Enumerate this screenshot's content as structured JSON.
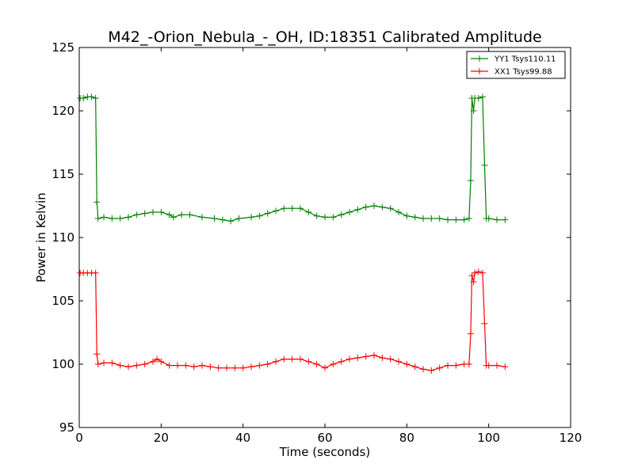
{
  "chart_data": {
    "type": "line",
    "title": "M42_-Orion_Nebula_-_OH, ID:18351 Calibrated Amplitude",
    "xlabel": "Time (seconds)",
    "ylabel": "Power in Kelvin",
    "xlim": [
      0,
      120
    ],
    "ylim": [
      95,
      125
    ],
    "xticks": [
      0,
      20,
      40,
      60,
      80,
      100,
      120
    ],
    "yticks": [
      95,
      100,
      105,
      110,
      115,
      120,
      125
    ],
    "grid": false,
    "legend_position": "top-right",
    "marker": "plus",
    "series": [
      {
        "name": "YY1 Tsys110.11",
        "color": "#008000",
        "points": [
          [
            0.2,
            121.0
          ],
          [
            1.0,
            121.0
          ],
          [
            2.0,
            121.1
          ],
          [
            3.0,
            121.1
          ],
          [
            4.0,
            121.0
          ],
          [
            4.3,
            112.8
          ],
          [
            4.6,
            111.5
          ],
          [
            6,
            111.6
          ],
          [
            8,
            111.5
          ],
          [
            10,
            111.5
          ],
          [
            12,
            111.6
          ],
          [
            14,
            111.8
          ],
          [
            16,
            111.9
          ],
          [
            18,
            112.0
          ],
          [
            20,
            112.0
          ],
          [
            22,
            111.8
          ],
          [
            23,
            111.6
          ],
          [
            25,
            111.8
          ],
          [
            27,
            111.8
          ],
          [
            30,
            111.6
          ],
          [
            33,
            111.5
          ],
          [
            35,
            111.4
          ],
          [
            37,
            111.3
          ],
          [
            39,
            111.5
          ],
          [
            42,
            111.6
          ],
          [
            44,
            111.7
          ],
          [
            46,
            111.9
          ],
          [
            48,
            112.1
          ],
          [
            50,
            112.3
          ],
          [
            52,
            112.3
          ],
          [
            54,
            112.3
          ],
          [
            56,
            112.0
          ],
          [
            58,
            111.7
          ],
          [
            60,
            111.6
          ],
          [
            62,
            111.6
          ],
          [
            64,
            111.8
          ],
          [
            66,
            112.0
          ],
          [
            68,
            112.2
          ],
          [
            70,
            112.4
          ],
          [
            72,
            112.5
          ],
          [
            74,
            112.4
          ],
          [
            76,
            112.3
          ],
          [
            78,
            112.0
          ],
          [
            80,
            111.7
          ],
          [
            82,
            111.6
          ],
          [
            84,
            111.5
          ],
          [
            86,
            111.5
          ],
          [
            88,
            111.5
          ],
          [
            90,
            111.4
          ],
          [
            92,
            111.4
          ],
          [
            94,
            111.4
          ],
          [
            95.2,
            111.5
          ],
          [
            95.6,
            114.5
          ],
          [
            95.9,
            121.0
          ],
          [
            96.3,
            120.0
          ],
          [
            96.6,
            121.0
          ],
          [
            97.5,
            121.0
          ],
          [
            98.5,
            121.1
          ],
          [
            99.0,
            115.7
          ],
          [
            99.4,
            111.5
          ],
          [
            100,
            111.5
          ],
          [
            102,
            111.4
          ],
          [
            104,
            111.4
          ]
        ]
      },
      {
        "name": "XX1 Tsys99.88",
        "color": "#ff0000",
        "points": [
          [
            0.2,
            107.2
          ],
          [
            1.0,
            107.2
          ],
          [
            2.0,
            107.2
          ],
          [
            3.0,
            107.2
          ],
          [
            4.0,
            107.2
          ],
          [
            4.3,
            100.8
          ],
          [
            4.6,
            100.0
          ],
          [
            6,
            100.1
          ],
          [
            8,
            100.1
          ],
          [
            10,
            99.9
          ],
          [
            12,
            99.8
          ],
          [
            14,
            99.9
          ],
          [
            16,
            100.0
          ],
          [
            18,
            100.2
          ],
          [
            19,
            100.4
          ],
          [
            20,
            100.2
          ],
          [
            22,
            99.9
          ],
          [
            24,
            99.9
          ],
          [
            26,
            99.9
          ],
          [
            28,
            99.8
          ],
          [
            30,
            99.9
          ],
          [
            32,
            99.8
          ],
          [
            34,
            99.7
          ],
          [
            36,
            99.7
          ],
          [
            38,
            99.7
          ],
          [
            40,
            99.7
          ],
          [
            42,
            99.8
          ],
          [
            44,
            99.9
          ],
          [
            46,
            100.0
          ],
          [
            48,
            100.2
          ],
          [
            50,
            100.4
          ],
          [
            52,
            100.4
          ],
          [
            54,
            100.4
          ],
          [
            56,
            100.2
          ],
          [
            58,
            100.0
          ],
          [
            60,
            99.7
          ],
          [
            62,
            100.0
          ],
          [
            64,
            100.2
          ],
          [
            66,
            100.4
          ],
          [
            68,
            100.5
          ],
          [
            70,
            100.6
          ],
          [
            72,
            100.7
          ],
          [
            74,
            100.5
          ],
          [
            76,
            100.4
          ],
          [
            78,
            100.2
          ],
          [
            80,
            100.0
          ],
          [
            82,
            99.8
          ],
          [
            84,
            99.6
          ],
          [
            86,
            99.5
          ],
          [
            88,
            99.7
          ],
          [
            90,
            99.9
          ],
          [
            92,
            99.9
          ],
          [
            94,
            100.0
          ],
          [
            95.2,
            100.0
          ],
          [
            95.6,
            102.4
          ],
          [
            95.9,
            107.0
          ],
          [
            96.3,
            106.5
          ],
          [
            96.6,
            107.2
          ],
          [
            97.5,
            107.3
          ],
          [
            98.5,
            107.2
          ],
          [
            99.0,
            103.2
          ],
          [
            99.4,
            99.9
          ],
          [
            100,
            99.9
          ],
          [
            102,
            99.9
          ],
          [
            104,
            99.8
          ]
        ]
      }
    ]
  }
}
